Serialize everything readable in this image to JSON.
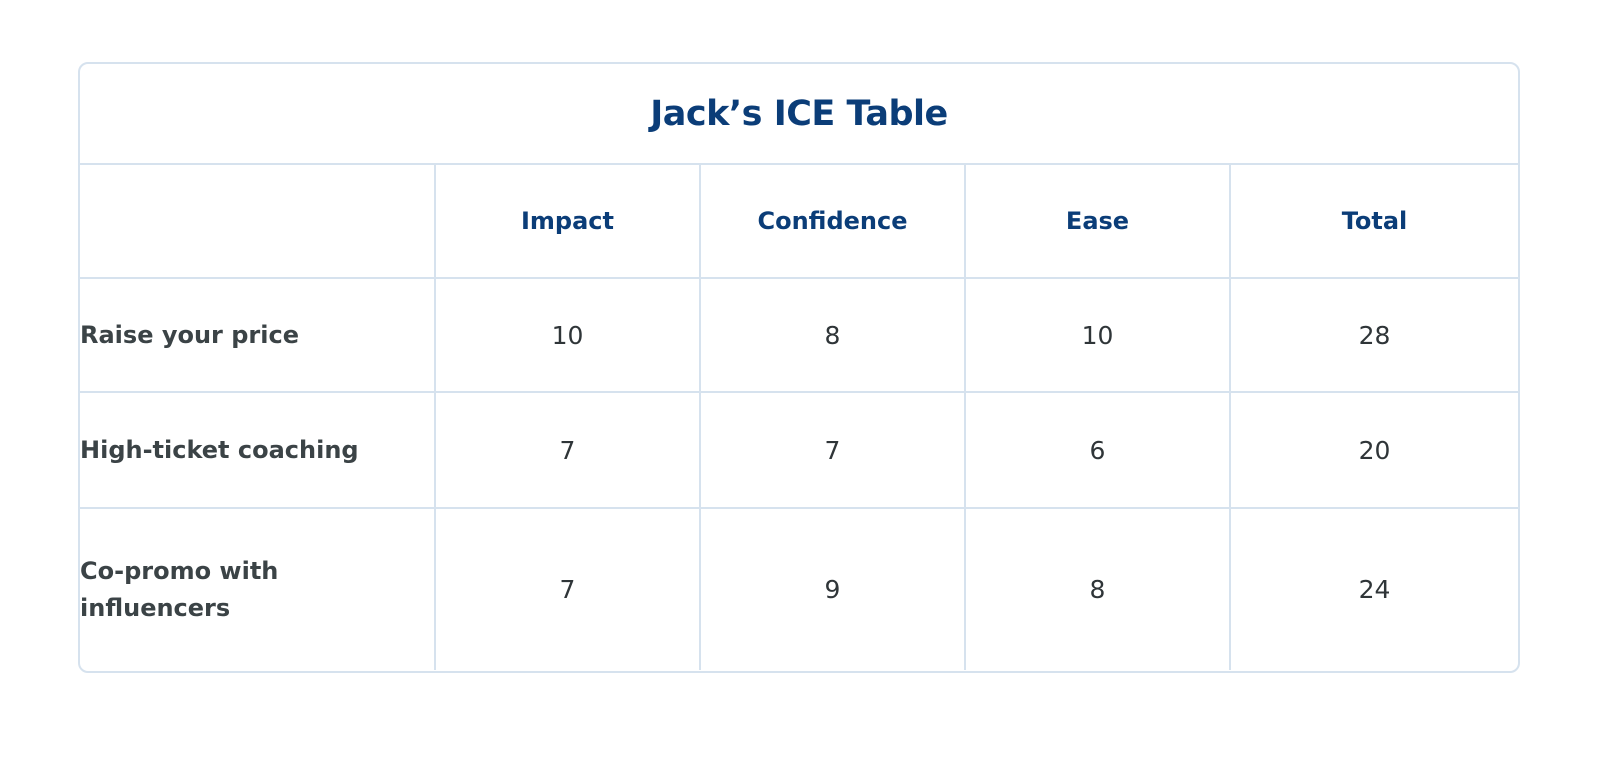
{
  "table": {
    "title": "Jack’s ICE Table",
    "corner": "",
    "headers": [
      "Impact",
      "Confidence",
      "Ease",
      "Total"
    ],
    "rows": [
      {
        "label": "Raise your price",
        "values": [
          "10",
          "8",
          "10",
          "28"
        ]
      },
      {
        "label": "High-ticket coaching",
        "values": [
          "7",
          "7",
          "6",
          "20"
        ]
      },
      {
        "label": "Co-promo with influencers",
        "values": [
          "7",
          "9",
          "8",
          "24"
        ]
      }
    ]
  },
  "colors": {
    "heading": "#0b3d78",
    "label_text": "#3b4346",
    "cell_text": "#2f3538",
    "border": "#d6e2ee"
  }
}
